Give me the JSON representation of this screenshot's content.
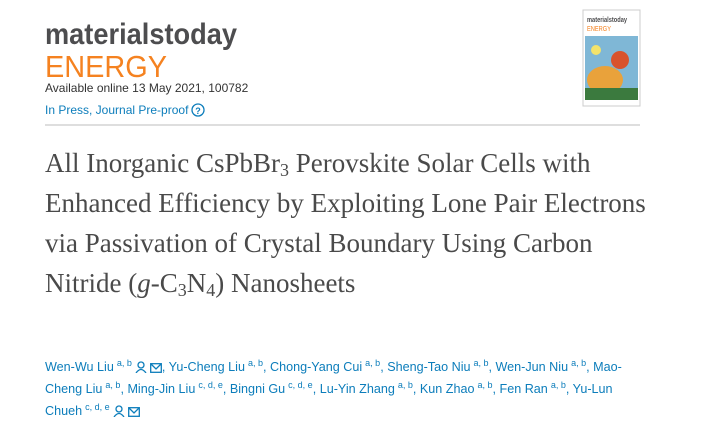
{
  "header": {
    "brand": "materialstoday",
    "journal": "ENERGY",
    "available": "Available online 13 May 2021, 100782",
    "status": "In Press, Journal Pre-proof",
    "help": "?"
  },
  "article": {
    "title": [
      "All Inorganic CsPbBr",
      "3",
      " Perovskite Solar Cells with Enhanced Efficiency by Exploiting Lone Pair Electrons via Passivation of Crystal Boundary Using Carbon Nitride (",
      "g",
      "-C",
      "3",
      "N",
      "4",
      ") Nanosheets"
    ],
    "author_separator": ",",
    "authors": [
      {
        "name": "Wen-Wu Liu",
        "aff": "a, b"
      },
      {
        "name": "Yu-Cheng Liu",
        "aff": "a, b"
      },
      {
        "name": "Chong-Yang Cui",
        "aff": "a, b"
      },
      {
        "name": "Sheng-Tao Niu",
        "aff": "a, b"
      },
      {
        "name": "Wen-Jun Niu",
        "aff": "a, b"
      },
      {
        "name": "Mao-Cheng Liu",
        "aff": "a, b"
      },
      {
        "name": "Ming-Jin Liu",
        "aff": "c, d, e"
      },
      {
        "name": "Bingni Gu",
        "aff": "c, d, e"
      },
      {
        "name": "Lu-Yin Zhang",
        "aff": "a, b"
      },
      {
        "name": "Kun Zhao",
        "aff": "a, b"
      },
      {
        "name": "Fen Ran",
        "aff": "a, b"
      },
      {
        "name": "Yu-Lun Chueh",
        "aff": "c, d, e"
      }
    ]
  }
}
